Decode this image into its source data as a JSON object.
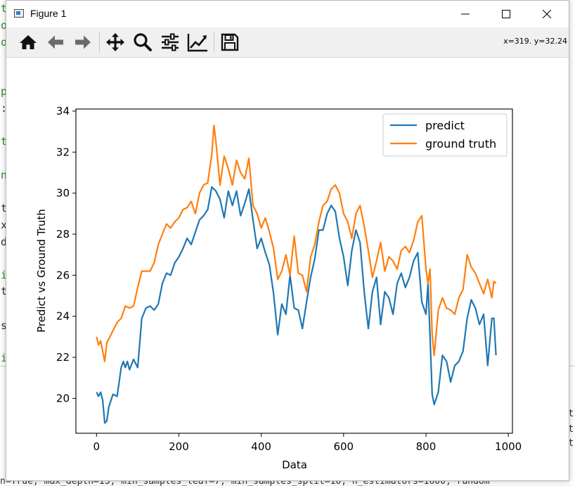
{
  "window": {
    "title": "Figure 1",
    "coord_readout": "x=319. y=32.24"
  },
  "toolbar": {
    "buttons": [
      "home-icon",
      "back-arrow-icon",
      "forward-arrow-icon",
      "pan-icon",
      "zoom-icon",
      "subplots-config-icon",
      "axes-edit-icon",
      "save-icon"
    ]
  },
  "background": {
    "left_chars": [
      "t",
      "o",
      "o",
      "p",
      ":",
      "t",
      "n",
      "t",
      "x",
      "d",
      "i",
      "t",
      "s",
      "i"
    ],
    "console_right_chars": [
      "t",
      "t",
      "t"
    ],
    "bottom_line": "n=True, max_depth=13, min_samples_leaf=7, min_samples_split=10, n_estimators=1000, random"
  },
  "colors": {
    "predict": "#1f77b4",
    "ground_truth": "#ff7f0e"
  },
  "chart_data": {
    "type": "line",
    "title": "",
    "xlabel": "Data",
    "ylabel": "Predict vs Ground Truth",
    "xlim": [
      -50,
      1010
    ],
    "ylim": [
      18.3,
      34.1
    ],
    "xticks": [
      0,
      200,
      400,
      600,
      800,
      1000
    ],
    "yticks": [
      20,
      22,
      24,
      26,
      28,
      30,
      32,
      34
    ],
    "x_tick_labels": [
      "0",
      "200",
      "400",
      "600",
      "800",
      "1000"
    ],
    "y_tick_labels": [
      "20",
      "22",
      "24",
      "26",
      "28",
      "30",
      "32",
      "34"
    ],
    "grid": false,
    "legend_position": "top-right",
    "series": [
      {
        "name": "predict",
        "x": [
          0,
          5,
          10,
          15,
          20,
          25,
          30,
          40,
          50,
          60,
          65,
          70,
          75,
          80,
          90,
          100,
          110,
          120,
          130,
          140,
          150,
          160,
          170,
          180,
          190,
          200,
          210,
          220,
          230,
          240,
          250,
          260,
          270,
          280,
          290,
          300,
          310,
          320,
          330,
          340,
          350,
          360,
          370,
          380,
          390,
          400,
          410,
          420,
          430,
          440,
          450,
          460,
          470,
          480,
          490,
          500,
          510,
          520,
          530,
          540,
          550,
          560,
          570,
          580,
          590,
          600,
          610,
          620,
          630,
          640,
          650,
          660,
          670,
          680,
          690,
          700,
          710,
          720,
          730,
          740,
          750,
          760,
          770,
          780,
          790,
          800,
          805,
          810,
          815,
          820,
          830,
          840,
          850,
          860,
          870,
          880,
          890,
          900,
          910,
          920,
          930,
          940,
          950,
          960,
          965,
          970
        ],
        "values": [
          20.3,
          20.1,
          20.3,
          19.9,
          18.8,
          18.9,
          19.6,
          20.2,
          20.1,
          21.5,
          21.8,
          21.5,
          21.8,
          21.4,
          21.9,
          21.5,
          23.9,
          24.4,
          24.5,
          24.3,
          24.6,
          25.6,
          26.1,
          26.0,
          26.6,
          26.9,
          27.3,
          27.8,
          27.5,
          28.1,
          28.7,
          28.9,
          29.2,
          30.3,
          30.1,
          29.7,
          28.8,
          30.1,
          29.4,
          30.1,
          28.9,
          29.5,
          30.2,
          28.7,
          27.3,
          27.8,
          27.1,
          26.5,
          25.1,
          23.1,
          24.6,
          24.1,
          26.0,
          24.4,
          24.3,
          23.4,
          24.7,
          25.9,
          26.8,
          28.2,
          28.2,
          29.0,
          29.4,
          29.1,
          27.8,
          26.9,
          25.5,
          27.2,
          28.2,
          27.6,
          25.2,
          23.4,
          25.2,
          25.9,
          23.6,
          25.2,
          24.9,
          24.1,
          25.6,
          26.1,
          25.4,
          25.9,
          26.7,
          27.1,
          24.7,
          24.1,
          25.6,
          23.0,
          20.2,
          19.7,
          20.3,
          22.1,
          21.8,
          20.8,
          21.6,
          21.8,
          22.3,
          23.9,
          24.8,
          24.4,
          23.6,
          24.1,
          21.6,
          23.9,
          23.9,
          22.1
        ]
      },
      {
        "name": "ground truth",
        "x": [
          0,
          5,
          10,
          15,
          20,
          25,
          30,
          40,
          50,
          60,
          70,
          80,
          90,
          100,
          110,
          120,
          130,
          140,
          150,
          160,
          170,
          180,
          190,
          200,
          210,
          220,
          230,
          240,
          250,
          260,
          270,
          280,
          285,
          290,
          300,
          310,
          320,
          330,
          340,
          350,
          360,
          370,
          380,
          390,
          400,
          410,
          420,
          430,
          440,
          450,
          460,
          470,
          480,
          490,
          500,
          510,
          520,
          530,
          540,
          550,
          560,
          570,
          580,
          590,
          600,
          610,
          620,
          630,
          640,
          650,
          660,
          670,
          680,
          690,
          700,
          710,
          720,
          730,
          740,
          750,
          760,
          770,
          780,
          790,
          800,
          805,
          810,
          815,
          820,
          830,
          840,
          850,
          860,
          870,
          880,
          890,
          900,
          910,
          920,
          930,
          940,
          950,
          960,
          965,
          970
        ],
        "values": [
          23.0,
          22.6,
          22.8,
          22.3,
          21.8,
          22.7,
          22.9,
          23.3,
          23.7,
          23.9,
          24.5,
          24.4,
          24.5,
          25.4,
          26.2,
          26.2,
          26.2,
          26.6,
          27.5,
          28.0,
          28.5,
          28.3,
          28.6,
          28.8,
          29.2,
          29.3,
          29.6,
          29.0,
          30.0,
          30.4,
          30.5,
          31.9,
          33.3,
          32.5,
          30.4,
          31.8,
          31.2,
          30.4,
          31.6,
          31.0,
          30.7,
          31.7,
          29.4,
          29.0,
          28.3,
          28.8,
          28.1,
          27.3,
          25.8,
          26.2,
          27.0,
          26.0,
          27.9,
          26.1,
          26.0,
          25.2,
          26.9,
          27.5,
          28.6,
          29.4,
          29.6,
          30.2,
          30.4,
          30.0,
          29.0,
          28.6,
          27.8,
          29.0,
          29.4,
          28.4,
          27.2,
          25.9,
          26.7,
          27.6,
          26.2,
          26.9,
          26.7,
          26.3,
          27.2,
          27.4,
          27.1,
          27.7,
          28.6,
          28.9,
          26.3,
          25.6,
          26.3,
          23.1,
          22.1,
          24.3,
          24.9,
          24.4,
          24.3,
          24.1,
          24.9,
          25.3,
          27.0,
          26.4,
          26.1,
          25.6,
          25.1,
          25.8,
          24.9,
          25.7,
          25.6
        ]
      }
    ]
  }
}
